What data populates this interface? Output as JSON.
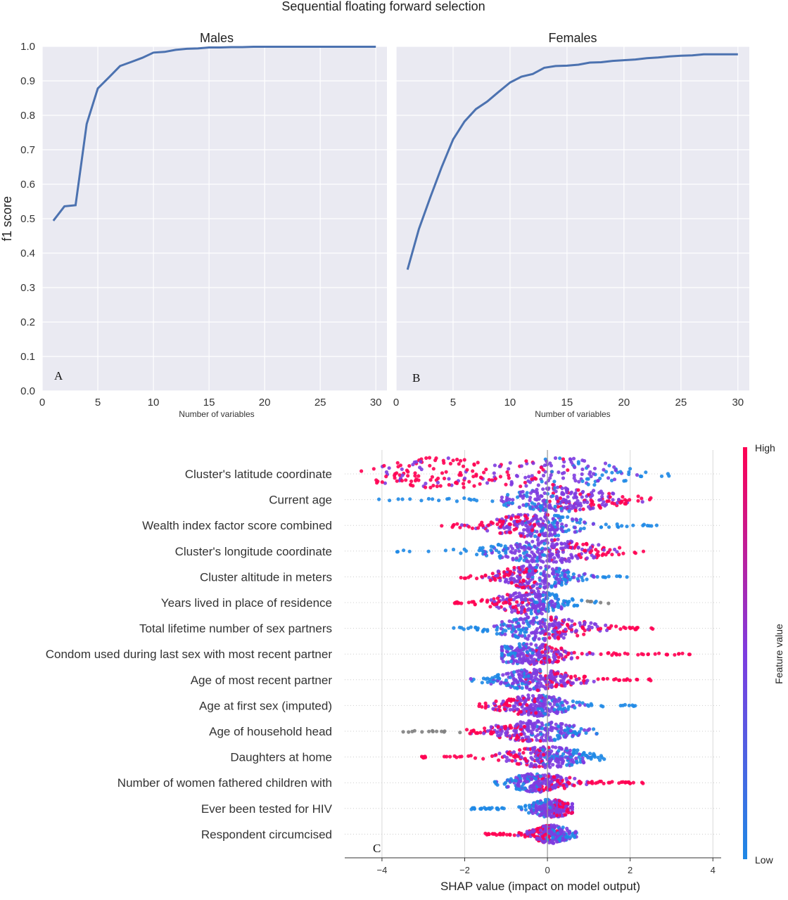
{
  "figure_title": "Sequential floating forward selection",
  "chart_data": [
    {
      "type": "line",
      "panel_label": "A",
      "title": "Males",
      "xlabel": "Number of variables",
      "ylabel": "f1 score",
      "xlim": [
        0,
        31
      ],
      "ylim": [
        0,
        1.0
      ],
      "x_ticks": [
        "0",
        "5",
        "10",
        "15",
        "20",
        "25",
        "30"
      ],
      "y_ticks": [
        "0.0",
        "0.1",
        "0.2",
        "0.3",
        "0.4",
        "0.5",
        "0.6",
        "0.7",
        "0.8",
        "0.9",
        "1.0"
      ],
      "grid": true,
      "series": [
        {
          "x": [
            1,
            2,
            3,
            4,
            5,
            6,
            7,
            8,
            9,
            10,
            11,
            12,
            13,
            14,
            15,
            16,
            17,
            18,
            19,
            20,
            21,
            22,
            23,
            24,
            25,
            26,
            27,
            28,
            29,
            30
          ],
          "values": [
            0.494,
            0.536,
            0.539,
            0.775,
            0.878,
            0.91,
            0.943,
            0.955,
            0.967,
            0.982,
            0.984,
            0.99,
            0.993,
            0.994,
            0.997,
            0.997,
            0.998,
            0.998,
            0.999,
            0.999,
            0.999,
            0.999,
            0.999,
            0.999,
            0.999,
            0.999,
            0.999,
            0.999,
            0.999,
            0.999
          ]
        }
      ],
      "color": "#4c72b0"
    },
    {
      "type": "line",
      "panel_label": "B",
      "title": "Females",
      "xlabel": "Number of variables",
      "ylabel": "",
      "xlim": [
        0,
        31
      ],
      "ylim": [
        0,
        1.0
      ],
      "x_ticks": [
        "0",
        "5",
        "10",
        "15",
        "20",
        "25",
        "30"
      ],
      "grid": true,
      "series": [
        {
          "x": [
            1,
            2,
            3,
            4,
            5,
            6,
            7,
            8,
            9,
            10,
            11,
            12,
            13,
            14,
            15,
            16,
            17,
            18,
            19,
            20,
            21,
            22,
            23,
            24,
            25,
            26,
            27,
            28,
            29,
            30
          ],
          "values": [
            0.352,
            0.47,
            0.562,
            0.65,
            0.73,
            0.782,
            0.818,
            0.84,
            0.868,
            0.895,
            0.912,
            0.92,
            0.938,
            0.943,
            0.944,
            0.947,
            0.953,
            0.954,
            0.958,
            0.96,
            0.962,
            0.966,
            0.968,
            0.971,
            0.973,
            0.974,
            0.977,
            0.977,
            0.977,
            0.977
          ]
        }
      ],
      "color": "#4c72b0"
    },
    {
      "type": "scatter",
      "subtype": "shap-beeswarm",
      "panel_label": "C",
      "xlabel": "SHAP value (impact on model output)",
      "xlim": [
        -4.9,
        4.2
      ],
      "x_ticks": [
        -4,
        -2,
        0,
        2,
        4
      ],
      "x_tick_labels": [
        "−4",
        "−2",
        "0",
        "2",
        "4"
      ],
      "colorbar": {
        "label": "Feature value",
        "high": "High",
        "low": "Low",
        "colors": [
          "#1e88e5",
          "#7e3ce0",
          "#ff0052"
        ]
      },
      "missing_color": "#808080",
      "features": [
        {
          "name": "Cluster's latitude coordinate",
          "min": -4.5,
          "max": 3.2,
          "peaks": [
            -2.7,
            0.2
          ],
          "low_side": "right",
          "spread": 22
        },
        {
          "name": "Current age",
          "min": -4.1,
          "max": 2.5,
          "peaks": [
            0.3
          ],
          "low_side": "left",
          "spread": 16
        },
        {
          "name": "Wealth index factor score combined",
          "min": -2.6,
          "max": 2.7,
          "peaks": [
            -0.3
          ],
          "low_side": "right",
          "spread": 16
        },
        {
          "name": "Cluster's longitude coordinate",
          "min": -3.8,
          "max": 2.4,
          "peaks": [
            0.0
          ],
          "low_side": "left",
          "spread": 16
        },
        {
          "name": "Cluster altitude in meters",
          "min": -2.1,
          "max": 2.0,
          "peaks": [
            -0.3
          ],
          "low_side": "right",
          "spread": 16
        },
        {
          "name": "Years lived in place of residence",
          "min": -2.3,
          "max": 1.5,
          "peaks": [
            -0.4
          ],
          "low_side": "right",
          "spread": 16
        },
        {
          "name": "Total lifetime number of sex partners",
          "min": -2.3,
          "max": 2.8,
          "peaks": [
            -0.1
          ],
          "low_side": "left",
          "spread": 16
        },
        {
          "name": "Condom used during last sex with most recent partner",
          "min": -1.1,
          "max": 3.6,
          "peaks": [
            -0.4
          ],
          "low_side": "left",
          "spread": 14
        },
        {
          "name": "Age of most recent partner",
          "min": -1.9,
          "max": 2.5,
          "peaks": [
            -0.3
          ],
          "low_side": "left",
          "spread": 14
        },
        {
          "name": "Age at first sex (imputed)",
          "min": -1.7,
          "max": 2.2,
          "peaks": [
            -0.3
          ],
          "low_side": "right",
          "spread": 14
        },
        {
          "name": "Age of household head",
          "min": -3.5,
          "max": 1.4,
          "peaks": [
            -0.3
          ],
          "low_side": "right",
          "spread": 14
        },
        {
          "name": "Daughters at home",
          "min": -3.1,
          "max": 1.4,
          "peaks": [
            0.0
          ],
          "low_side": "right",
          "spread": 14
        },
        {
          "name": "Number of women fathered children with",
          "min": -1.3,
          "max": 2.5,
          "peaks": [
            -0.2
          ],
          "low_side": "left",
          "spread": 12
        },
        {
          "name": "Ever been tested for HIV",
          "min": -1.9,
          "max": 0.6,
          "peaks": [
            0.1
          ],
          "low_side": "left",
          "spread": 12
        },
        {
          "name": "Respondent circumcised",
          "min": -1.5,
          "max": 0.7,
          "peaks": [
            0.1
          ],
          "low_side": "right",
          "spread": 12
        }
      ]
    }
  ]
}
